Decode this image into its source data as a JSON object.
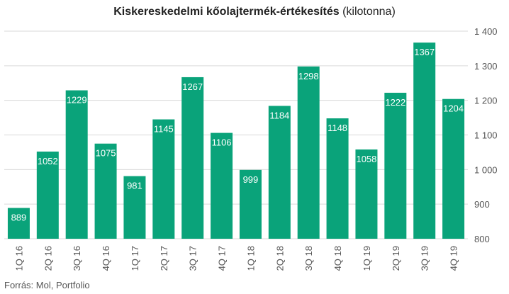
{
  "title_bold": "Kiskereskedelmi kőolajtermék-értékesítés",
  "title_unit": "(kilotonna)",
  "source": "Forrás: Mol, Portfolio",
  "colors": {
    "bar": "#0aa37a",
    "grid": "#d9d9d9",
    "tick": "#555555",
    "label": "#ffffff"
  },
  "chart_data": {
    "type": "bar",
    "categories": [
      "1Q 16",
      "2Q 16",
      "3Q 16",
      "4Q 16",
      "1Q 17",
      "2Q 17",
      "3Q 17",
      "4Q 17",
      "1Q 18",
      "2Q 18",
      "3Q 18",
      "4Q 18",
      "1Q 19",
      "2Q 19",
      "3Q 19",
      "4Q 19"
    ],
    "values": [
      889,
      1052,
      1229,
      1075,
      981,
      1145,
      1267,
      1106,
      999,
      1184,
      1298,
      1148,
      1058,
      1222,
      1367,
      1204
    ],
    "ylim": [
      800,
      1400
    ],
    "yticks": [
      800,
      900,
      1000,
      1100,
      1200,
      1300,
      1400
    ],
    "ytick_labels": [
      "800",
      "900",
      "1 000",
      "1 100",
      "1 200",
      "1 300",
      "1 400"
    ],
    "grid": true,
    "data_labels": true
  }
}
